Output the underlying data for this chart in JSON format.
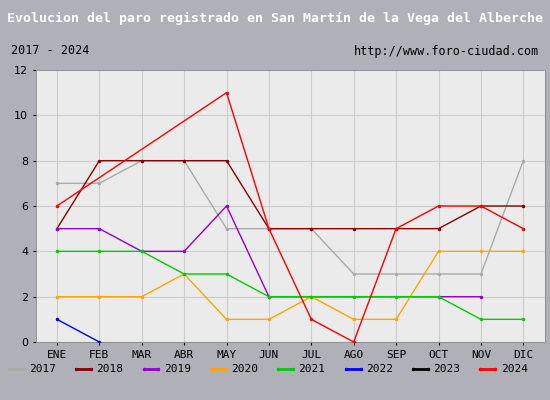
{
  "title": "Evolucion del paro registrado en San Martín de la Vega del Alberche",
  "subtitle_left": "2017 - 2024",
  "subtitle_right": "http://www.foro-ciudad.com",
  "months": [
    "ENE",
    "FEB",
    "MAR",
    "ABR",
    "MAY",
    "JUN",
    "JUL",
    "AGO",
    "SEP",
    "OCT",
    "NOV",
    "DIC"
  ],
  "ylim": [
    0,
    12
  ],
  "yticks": [
    0,
    2,
    4,
    6,
    8,
    10,
    12
  ],
  "series": {
    "2017": {
      "color": "#aaaaaa",
      "linewidth": 1.0,
      "marker": ".",
      "markersize": 3,
      "data": [
        7,
        7,
        8,
        8,
        5,
        5,
        5,
        3,
        3,
        3,
        3,
        8
      ]
    },
    "2018": {
      "color": "#8b0000",
      "linewidth": 1.0,
      "marker": ".",
      "markersize": 3,
      "data": [
        5,
        8,
        8,
        8,
        8,
        5,
        5,
        5,
        5,
        5,
        6,
        6
      ]
    },
    "2019": {
      "color": "#9400d3",
      "linewidth": 1.0,
      "marker": ".",
      "markersize": 3,
      "data": [
        5,
        5,
        4,
        4,
        6,
        2,
        null,
        null,
        null,
        2,
        2,
        null
      ]
    },
    "2020": {
      "color": "#ffa500",
      "linewidth": 1.0,
      "marker": ".",
      "markersize": 3,
      "data": [
        2,
        2,
        2,
        3,
        1,
        1,
        2,
        1,
        1,
        4,
        4,
        4
      ]
    },
    "2021": {
      "color": "#00cc00",
      "linewidth": 1.0,
      "marker": ".",
      "markersize": 3,
      "data": [
        4,
        4,
        4,
        3,
        3,
        2,
        2,
        2,
        2,
        2,
        1,
        1
      ]
    },
    "2022": {
      "color": "#0000ff",
      "linewidth": 1.0,
      "marker": ".",
      "markersize": 3,
      "data": [
        1,
        0,
        null,
        null,
        null,
        null,
        null,
        null,
        null,
        null,
        null,
        null
      ]
    },
    "2023": {
      "color": "#000000",
      "linewidth": 1.0,
      "marker": ".",
      "markersize": 3,
      "data": [
        null,
        null,
        null,
        null,
        null,
        null,
        null,
        null,
        null,
        null,
        null,
        null
      ]
    },
    "2024": {
      "color": "#ff0000",
      "linewidth": 1.0,
      "marker": ".",
      "markersize": 3,
      "data": [
        6,
        null,
        null,
        null,
        11,
        5,
        1,
        0,
        5,
        6,
        6,
        5
      ]
    }
  },
  "legend_order": [
    "2017",
    "2018",
    "2019",
    "2020",
    "2021",
    "2022",
    "2023",
    "2024"
  ],
  "title_bg": "#4472c4",
  "title_color": "#ffffff",
  "title_fontsize": 9.5,
  "subtitle_bg": "#f0f0f0",
  "subtitle_fontsize": 8.5,
  "plot_bg": "#ebebeb",
  "grid_color": "#cccccc",
  "legend_bg": "#f0f0f0",
  "legend_border": "#aaaaaa"
}
